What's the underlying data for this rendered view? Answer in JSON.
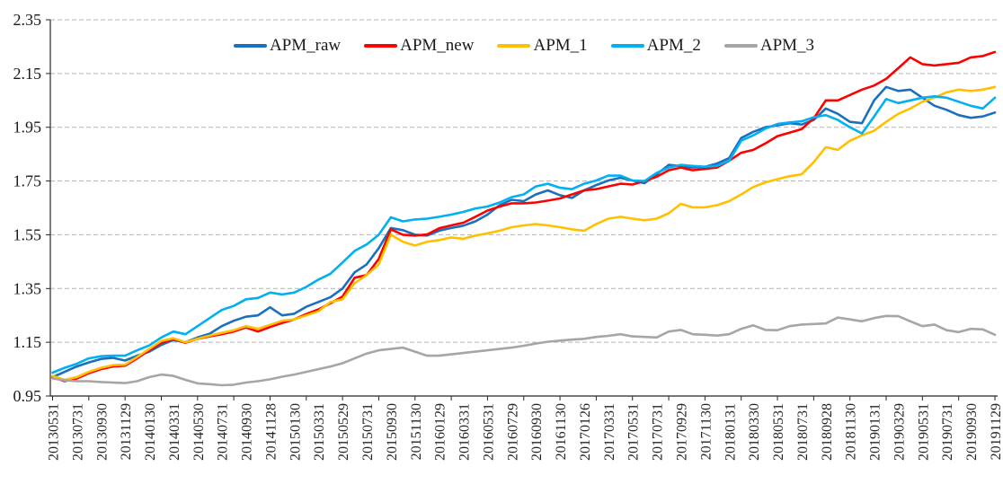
{
  "chart_data": {
    "type": "line",
    "title": "",
    "xlabel": "",
    "ylabel": "",
    "ylim": [
      0.95,
      2.35
    ],
    "y_tick_labels": [
      "0.95",
      "1.15",
      "1.35",
      "1.55",
      "1.75",
      "1.95",
      "2.15",
      "2.35"
    ],
    "grid": "horizontal-dashed",
    "grid_color": "#b3b3b3",
    "axis_color": "#262626",
    "legend_position": "top-center",
    "x_tick_labels": [
      "20130531",
      "20130731",
      "20130930",
      "20131129",
      "20140130",
      "20140331",
      "20140530",
      "20140731",
      "20140930",
      "20141128",
      "20150130",
      "20150331",
      "20150529",
      "20150731",
      "20150930",
      "20151130",
      "20160129",
      "20160331",
      "20160531",
      "20160729",
      "20160930",
      "20161130",
      "20170126",
      "20170331",
      "20170531",
      "20170731",
      "20170929",
      "20171130",
      "20180131",
      "20180330",
      "20180531",
      "20180731",
      "20180928",
      "20181130",
      "20190131",
      "20190329",
      "20190531",
      "20190731",
      "20190930",
      "20191129"
    ],
    "points_per_label": 2,
    "series": [
      {
        "name": "APM_raw",
        "color": "#1A70BE",
        "values": [
          1.02,
          1.04,
          1.06,
          1.075,
          1.088,
          1.092,
          1.082,
          1.1,
          1.115,
          1.14,
          1.158,
          1.15,
          1.168,
          1.182,
          1.21,
          1.23,
          1.245,
          1.25,
          1.28,
          1.25,
          1.256,
          1.282,
          1.3,
          1.318,
          1.35,
          1.41,
          1.44,
          1.5,
          1.575,
          1.567,
          1.55,
          1.547,
          1.565,
          1.575,
          1.584,
          1.6,
          1.625,
          1.66,
          1.68,
          1.675,
          1.7,
          1.715,
          1.697,
          1.687,
          1.715,
          1.735,
          1.752,
          1.762,
          1.752,
          1.742,
          1.775,
          1.81,
          1.805,
          1.8,
          1.803,
          1.815,
          1.835,
          1.91,
          1.933,
          1.95,
          1.957,
          1.965,
          1.96,
          1.977,
          2.02,
          2.0,
          1.97,
          1.965,
          2.05,
          2.1,
          2.085,
          2.09,
          2.06,
          2.03,
          2.015,
          1.995,
          1.985,
          1.99,
          2.005
        ]
      },
      {
        "name": "APM_new",
        "color": "#FE0000",
        "values": [
          1.02,
          1.005,
          1.015,
          1.035,
          1.05,
          1.06,
          1.063,
          1.09,
          1.12,
          1.148,
          1.162,
          1.148,
          1.163,
          1.172,
          1.18,
          1.19,
          1.205,
          1.19,
          1.207,
          1.222,
          1.235,
          1.255,
          1.272,
          1.295,
          1.32,
          1.39,
          1.4,
          1.46,
          1.57,
          1.55,
          1.547,
          1.551,
          1.574,
          1.585,
          1.595,
          1.617,
          1.64,
          1.655,
          1.667,
          1.667,
          1.67,
          1.677,
          1.685,
          1.7,
          1.715,
          1.72,
          1.73,
          1.74,
          1.737,
          1.75,
          1.766,
          1.79,
          1.8,
          1.79,
          1.795,
          1.8,
          1.825,
          1.855,
          1.866,
          1.89,
          1.917,
          1.93,
          1.943,
          1.983,
          2.05,
          2.05,
          2.07,
          2.09,
          2.105,
          2.13,
          2.17,
          2.21,
          2.185,
          2.18,
          2.185,
          2.19,
          2.21,
          2.215,
          2.23
        ]
      },
      {
        "name": "APM_1",
        "color": "#FFC000",
        "values": [
          1.025,
          1.01,
          1.02,
          1.04,
          1.055,
          1.065,
          1.067,
          1.095,
          1.125,
          1.155,
          1.165,
          1.15,
          1.163,
          1.175,
          1.185,
          1.195,
          1.21,
          1.2,
          1.215,
          1.23,
          1.235,
          1.25,
          1.265,
          1.3,
          1.31,
          1.37,
          1.4,
          1.44,
          1.55,
          1.524,
          1.51,
          1.524,
          1.53,
          1.54,
          1.535,
          1.547,
          1.555,
          1.565,
          1.578,
          1.585,
          1.59,
          1.585,
          1.578,
          1.57,
          1.565,
          1.59,
          1.61,
          1.617,
          1.61,
          1.604,
          1.61,
          1.63,
          1.665,
          1.652,
          1.652,
          1.66,
          1.675,
          1.7,
          1.728,
          1.745,
          1.757,
          1.768,
          1.775,
          1.82,
          1.876,
          1.866,
          1.9,
          1.92,
          1.937,
          1.97,
          2.0,
          2.02,
          2.045,
          2.06,
          2.08,
          2.09,
          2.085,
          2.09,
          2.1
        ]
      },
      {
        "name": "APM_2",
        "color": "#00B0F0",
        "values": [
          1.037,
          1.055,
          1.07,
          1.09,
          1.098,
          1.1,
          1.1,
          1.12,
          1.138,
          1.168,
          1.19,
          1.18,
          1.21,
          1.24,
          1.27,
          1.285,
          1.31,
          1.315,
          1.335,
          1.328,
          1.335,
          1.356,
          1.383,
          1.405,
          1.447,
          1.49,
          1.514,
          1.55,
          1.615,
          1.6,
          1.607,
          1.61,
          1.617,
          1.625,
          1.635,
          1.648,
          1.655,
          1.67,
          1.69,
          1.7,
          1.73,
          1.74,
          1.725,
          1.72,
          1.74,
          1.752,
          1.77,
          1.77,
          1.752,
          1.75,
          1.78,
          1.8,
          1.81,
          1.806,
          1.803,
          1.806,
          1.825,
          1.9,
          1.92,
          1.945,
          1.962,
          1.968,
          1.972,
          1.987,
          1.995,
          1.977,
          1.95,
          1.927,
          1.99,
          2.055,
          2.04,
          2.05,
          2.06,
          2.065,
          2.06,
          2.045,
          2.03,
          2.02,
          2.06
        ]
      },
      {
        "name": "APM_3",
        "color": "#A6A6A6",
        "values": [
          1.015,
          1.008,
          1.005,
          1.005,
          1.002,
          1.0,
          0.998,
          1.005,
          1.02,
          1.03,
          1.025,
          1.01,
          0.997,
          0.994,
          0.99,
          0.992,
          1.0,
          1.005,
          1.012,
          1.022,
          1.03,
          1.04,
          1.05,
          1.06,
          1.072,
          1.09,
          1.108,
          1.12,
          1.125,
          1.13,
          1.115,
          1.1,
          1.1,
          1.105,
          1.11,
          1.115,
          1.12,
          1.125,
          1.13,
          1.137,
          1.145,
          1.152,
          1.156,
          1.16,
          1.163,
          1.17,
          1.174,
          1.18,
          1.172,
          1.17,
          1.168,
          1.19,
          1.196,
          1.18,
          1.178,
          1.175,
          1.18,
          1.2,
          1.213,
          1.196,
          1.195,
          1.21,
          1.216,
          1.218,
          1.22,
          1.242,
          1.235,
          1.228,
          1.24,
          1.248,
          1.247,
          1.228,
          1.21,
          1.216,
          1.195,
          1.188,
          1.2,
          1.198,
          1.178
        ]
      }
    ]
  }
}
